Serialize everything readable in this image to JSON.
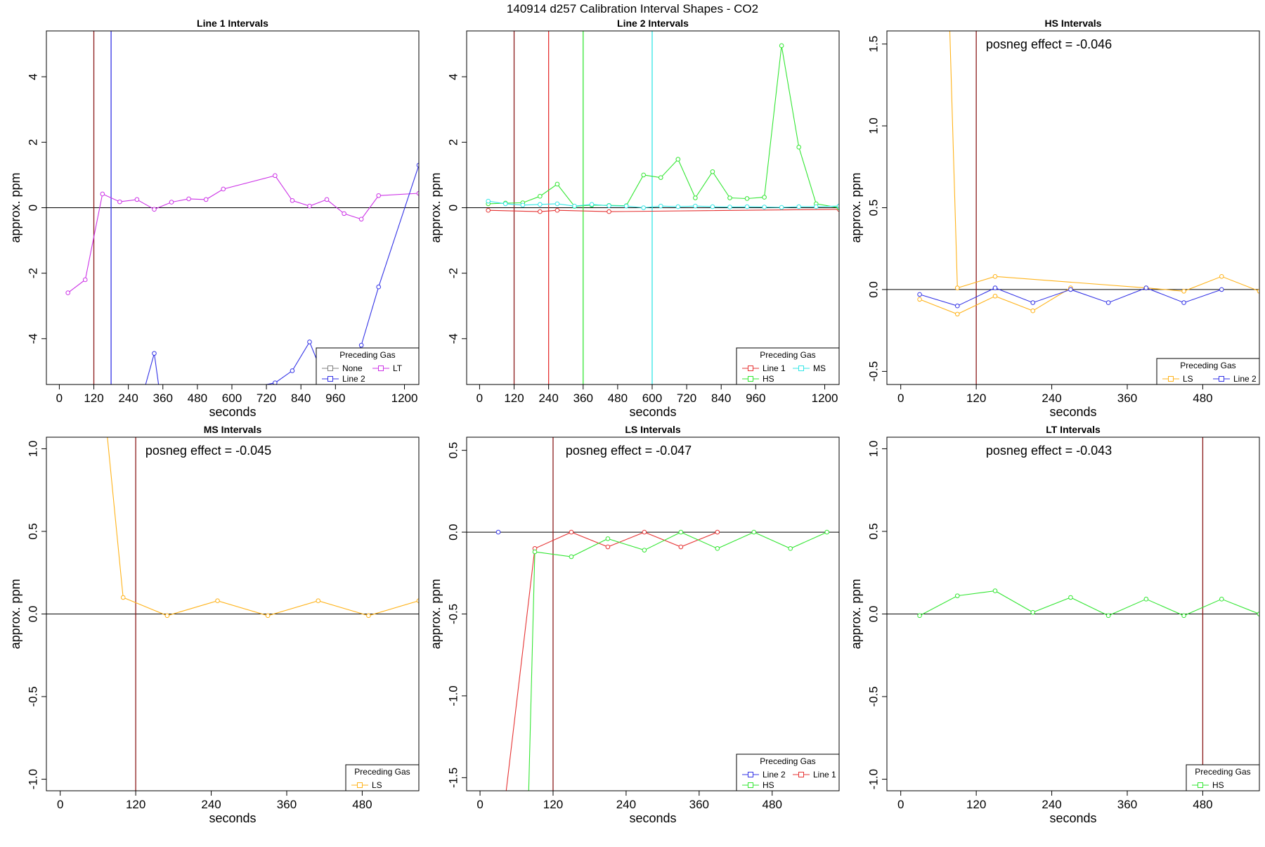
{
  "page": {
    "title": "140914  d257   Calibration Interval Shapes - CO2"
  },
  "colors": {
    "None": "#808080",
    "LT": "#cc33e6",
    "Line 2": "#3333e6",
    "Line 1": "#e63333",
    "HS": "#33e633",
    "MS": "#33e6e6",
    "LS": "#ffb31a",
    "vline_dark": "#8b1a1a",
    "axis": "#000000"
  },
  "chart_data": [
    {
      "type": "line",
      "title": "Line 1 Intervals",
      "xlabel": "seconds",
      "ylabel": "approx. ppm",
      "xlim": [
        -45,
        1250
      ],
      "ylim": [
        -5.4,
        5.4
      ],
      "xticks": [
        0,
        120,
        240,
        360,
        480,
        600,
        720,
        840,
        960,
        1200
      ],
      "yticks": [
        -4,
        -2,
        0,
        2,
        4
      ],
      "hline": 0,
      "vlines": [
        {
          "x": 120,
          "color": "vline_dark"
        },
        {
          "x": 180,
          "color": "Line 2"
        }
      ],
      "series": [
        {
          "name": "LT",
          "x": [
            30,
            90,
            150,
            210,
            270,
            330,
            390,
            450,
            510,
            570,
            750,
            810,
            870,
            930,
            990,
            1050,
            1110,
            1250
          ],
          "values": [
            -2.6,
            -2.2,
            0.42,
            0.18,
            0.25,
            -0.05,
            0.17,
            0.27,
            0.25,
            0.57,
            0.98,
            0.22,
            0.05,
            0.25,
            -0.18,
            -0.35,
            0.37,
            0.44
          ]
        },
        {
          "name": "Line 2",
          "x": [
            300,
            330,
            345,
            720,
            750,
            810,
            870,
            930,
            990,
            1050,
            1110,
            1250
          ],
          "values": [
            -5.4,
            -4.45,
            -5.4,
            -5.4,
            -5.35,
            -4.98,
            -4.1,
            -5.4,
            -5.4,
            -4.2,
            -2.42,
            1.3
          ]
        }
      ],
      "legend": {
        "title": "Preceding Gas",
        "position": "bottom-right",
        "rows": [
          [
            "None",
            "LT"
          ],
          [
            "Line 2"
          ]
        ]
      },
      "annotation": ""
    },
    {
      "type": "line",
      "title": "Line 2 Intervals",
      "xlabel": "seconds",
      "ylabel": "approx. ppm",
      "xlim": [
        -45,
        1250
      ],
      "ylim": [
        -5.4,
        5.4
      ],
      "xticks": [
        0,
        120,
        240,
        360,
        480,
        600,
        720,
        840,
        960,
        1200
      ],
      "yticks": [
        -4,
        -2,
        0,
        2,
        4
      ],
      "hline": 0,
      "vlines": [
        {
          "x": 120,
          "color": "vline_dark"
        },
        {
          "x": 240,
          "color": "Line 1"
        },
        {
          "x": 360,
          "color": "HS"
        },
        {
          "x": 600,
          "color": "MS"
        }
      ],
      "series": [
        {
          "name": "Line 1",
          "x": [
            30,
            210,
            270,
            450,
            1250
          ],
          "values": [
            -0.08,
            -0.12,
            -0.08,
            -0.12,
            -0.05
          ]
        },
        {
          "name": "HS",
          "x": [
            30,
            90,
            150,
            210,
            270,
            330,
            390,
            450,
            510,
            570,
            630,
            690,
            750,
            810,
            870,
            930,
            990,
            1050,
            1110,
            1170,
            1250
          ],
          "values": [
            0.12,
            0.14,
            0.15,
            0.35,
            0.72,
            0.04,
            0.08,
            0.07,
            0.06,
            1.0,
            0.92,
            1.48,
            0.3,
            1.1,
            0.3,
            0.28,
            0.32,
            4.95,
            1.85,
            0.12,
            0.0
          ]
        },
        {
          "name": "MS",
          "x": [
            30,
            90,
            150,
            210,
            270,
            330,
            390,
            450,
            510,
            570,
            630,
            690,
            750,
            810,
            870,
            930,
            990,
            1050,
            1110,
            1170,
            1250
          ],
          "values": [
            0.2,
            0.12,
            0.08,
            0.1,
            0.12,
            0.05,
            0.1,
            0.06,
            0.05,
            0.0,
            0.05,
            0.03,
            0.05,
            0.03,
            0.02,
            0.03,
            0.02,
            0.01,
            0.03,
            0.03,
            0.05
          ]
        }
      ],
      "legend": {
        "title": "Preceding Gas",
        "position": "bottom-right",
        "rows": [
          [
            "Line 1",
            "MS"
          ],
          [
            "HS"
          ]
        ]
      },
      "annotation": ""
    },
    {
      "type": "line",
      "title": "HS Intervals",
      "xlabel": "seconds",
      "ylabel": "approx. ppm",
      "xlim": [
        -22,
        570
      ],
      "ylim": [
        -0.58,
        1.58
      ],
      "xticks": [
        0,
        120,
        240,
        360,
        480
      ],
      "yticks": [
        -0.5,
        0.0,
        0.5,
        1.0,
        1.5
      ],
      "hline": 0,
      "vlines": [
        {
          "x": 120,
          "color": "vline_dark"
        }
      ],
      "series": [
        {
          "name": "LS",
          "x": [
            78,
            90,
            150,
            390,
            450,
            510,
            570
          ],
          "values": [
            1.58,
            0.01,
            0.08,
            0.01,
            -0.01,
            0.08,
            -0.01
          ]
        },
        {
          "name": "LS",
          "x": [
            30,
            90,
            150,
            210,
            270
          ],
          "values": [
            -0.06,
            -0.15,
            -0.04,
            -0.13,
            0.01
          ]
        },
        {
          "name": "Line 2",
          "x": [
            30,
            90,
            150,
            210,
            270,
            330,
            390,
            450,
            510
          ],
          "values": [
            -0.03,
            -0.1,
            0.01,
            -0.08,
            0.0,
            -0.08,
            0.01,
            -0.08,
            0.0
          ]
        }
      ],
      "legend": {
        "title": "Preceding Gas",
        "position": "bottom-right",
        "rows": [
          [
            "LS",
            "Line 2"
          ]
        ]
      },
      "annotation": "posneg effect = -0.046"
    },
    {
      "type": "line",
      "title": "MS Intervals",
      "xlabel": "seconds",
      "ylabel": "approx. ppm",
      "xlim": [
        -22,
        570
      ],
      "ylim": [
        -1.07,
        1.07
      ],
      "xticks": [
        0,
        120,
        240,
        360,
        480
      ],
      "yticks": [
        -1.0,
        -0.5,
        0.0,
        0.5,
        1.0
      ],
      "hline": 0,
      "vlines": [
        {
          "x": 120,
          "color": "vline_dark"
        }
      ],
      "series": [
        {
          "name": "LS",
          "x": [
            75,
            100,
            170,
            250,
            330,
            410,
            490,
            570
          ],
          "values": [
            1.07,
            0.1,
            -0.01,
            0.08,
            -0.01,
            0.08,
            -0.01,
            0.08
          ]
        }
      ],
      "legend": {
        "title": "Preceding Gas",
        "position": "bottom-right",
        "rows": [
          [
            "LS"
          ]
        ]
      },
      "annotation": "posneg effect = -0.045"
    },
    {
      "type": "line",
      "title": "LS Intervals",
      "xlabel": "seconds",
      "ylabel": "approx. ppm",
      "xlim": [
        -22,
        590
      ],
      "ylim": [
        -1.58,
        0.58
      ],
      "xticks": [
        0,
        120,
        240,
        360,
        480
      ],
      "yticks": [
        -1.5,
        -1.0,
        -0.5,
        0.0,
        0.5
      ],
      "hline": 0,
      "vlines": [
        {
          "x": 120,
          "color": "vline_dark"
        }
      ],
      "series": [
        {
          "name": "Line 2",
          "x": [
            30
          ],
          "values": [
            0.0
          ]
        },
        {
          "name": "Line 1",
          "x": [
            43,
            90,
            150,
            210,
            270,
            330,
            390
          ],
          "values": [
            -1.58,
            -0.1,
            0.0,
            -0.09,
            0.0,
            -0.09,
            0.0
          ]
        },
        {
          "name": "HS",
          "x": [
            80,
            90,
            150,
            210,
            270,
            330,
            390,
            450,
            510,
            570
          ],
          "values": [
            -1.58,
            -0.12,
            -0.15,
            -0.04,
            -0.11,
            0.0,
            -0.1,
            0.0,
            -0.1,
            0.0
          ]
        }
      ],
      "legend": {
        "title": "Preceding Gas",
        "position": "bottom-right",
        "rows": [
          [
            "Line 2",
            "Line 1"
          ],
          [
            "HS"
          ]
        ]
      },
      "annotation": "posneg effect = -0.047"
    },
    {
      "type": "line",
      "title": "LT Intervals",
      "xlabel": "seconds",
      "ylabel": "approx. ppm",
      "xlim": [
        -22,
        570
      ],
      "ylim": [
        -1.07,
        1.07
      ],
      "xticks": [
        0,
        120,
        240,
        360,
        480
      ],
      "yticks": [
        -1.0,
        -0.5,
        0.0,
        0.5,
        1.0
      ],
      "hline": 0,
      "vlines": [
        {
          "x": 480,
          "color": "vline_dark"
        }
      ],
      "series": [
        {
          "name": "HS",
          "x": [
            30,
            90,
            150,
            210,
            270,
            330,
            390,
            450,
            510,
            570
          ],
          "values": [
            -0.01,
            0.11,
            0.14,
            0.01,
            0.1,
            -0.01,
            0.09,
            -0.01,
            0.09,
            0.0
          ]
        }
      ],
      "legend": {
        "title": "Preceding Gas",
        "position": "bottom-right",
        "rows": [
          [
            "HS"
          ]
        ]
      },
      "annotation": "posneg effect = -0.043"
    }
  ]
}
